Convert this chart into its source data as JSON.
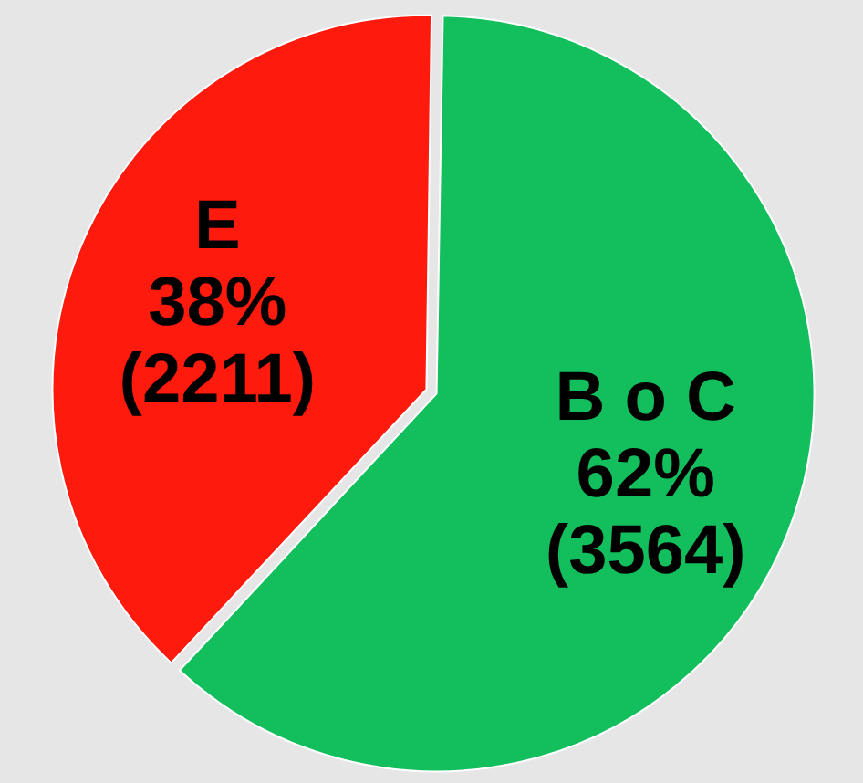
{
  "chart_data": {
    "type": "pie",
    "categories": [
      "E",
      "B o C"
    ],
    "values": [
      2211,
      3564
    ],
    "colors": [
      "#ff1a0e",
      "#12bf5c"
    ],
    "value_labels": [
      "38%\n(2211)",
      "62%\n(3564)"
    ]
  }
}
